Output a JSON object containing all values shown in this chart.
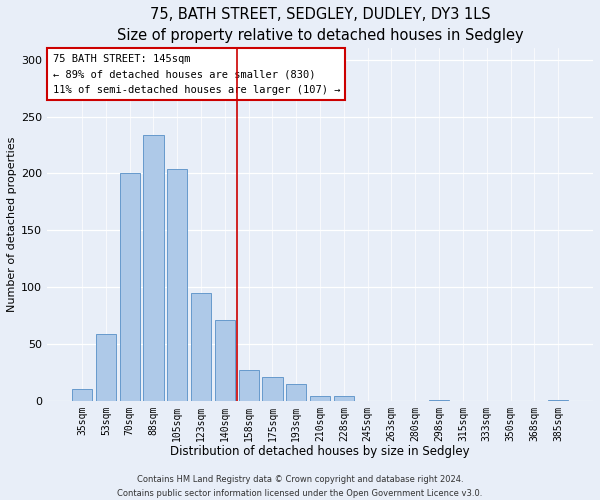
{
  "title": "75, BATH STREET, SEDGLEY, DUDLEY, DY3 1LS",
  "subtitle": "Size of property relative to detached houses in Sedgley",
  "xlabel": "Distribution of detached houses by size in Sedgley",
  "ylabel": "Number of detached properties",
  "bar_labels": [
    "35sqm",
    "53sqm",
    "70sqm",
    "88sqm",
    "105sqm",
    "123sqm",
    "140sqm",
    "158sqm",
    "175sqm",
    "193sqm",
    "210sqm",
    "228sqm",
    "245sqm",
    "263sqm",
    "280sqm",
    "298sqm",
    "315sqm",
    "333sqm",
    "350sqm",
    "368sqm",
    "385sqm"
  ],
  "bar_values": [
    10,
    59,
    200,
    234,
    204,
    95,
    71,
    27,
    21,
    15,
    4,
    4,
    0,
    0,
    0,
    1,
    0,
    0,
    0,
    0,
    1
  ],
  "bar_color": "#aec9e8",
  "bar_edge_color": "#6699cc",
  "vline_x": 6.5,
  "vline_color": "#cc0000",
  "annotation_title": "75 BATH STREET: 145sqm",
  "annotation_line1": "← 89% of detached houses are smaller (830)",
  "annotation_line2": "11% of semi-detached houses are larger (107) →",
  "annotation_box_color": "#ffffff",
  "annotation_box_edge": "#cc0000",
  "ylim": [
    0,
    310
  ],
  "yticks": [
    0,
    50,
    100,
    150,
    200,
    250,
    300
  ],
  "footer_line1": "Contains HM Land Registry data © Crown copyright and database right 2024.",
  "footer_line2": "Contains public sector information licensed under the Open Government Licence v3.0.",
  "bg_color": "#e8eef8",
  "title_fontsize": 10.5,
  "subtitle_fontsize": 9
}
